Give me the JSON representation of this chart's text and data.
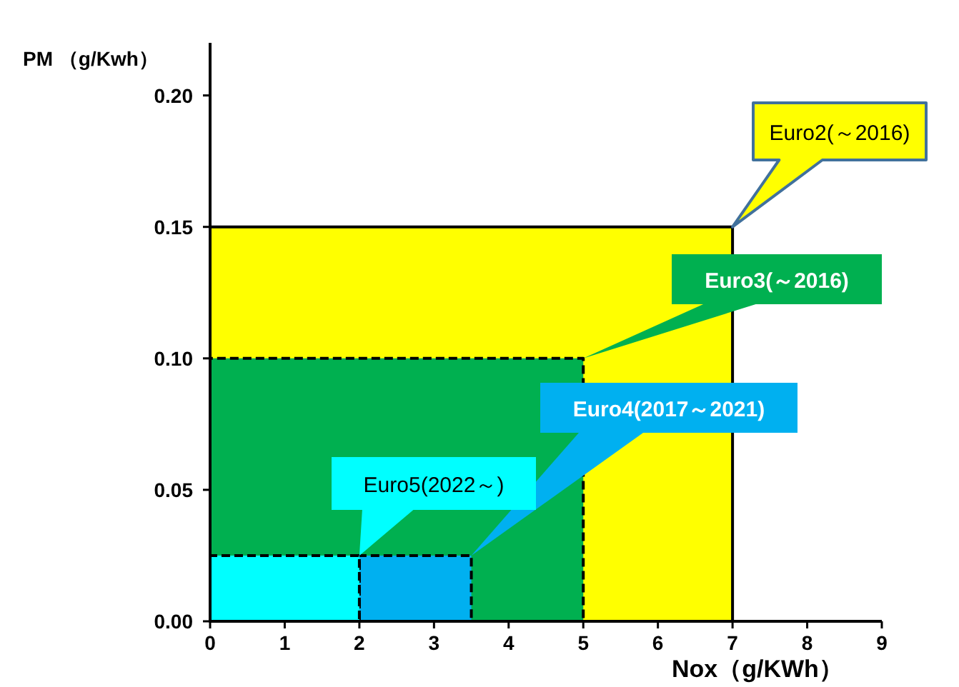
{
  "chart_data": {
    "type": "area",
    "xlabel": "Nox（g/KWh）",
    "ylabel": "PM （g/Kwh）",
    "xlim": [
      0,
      9
    ],
    "xticks": [
      0,
      1,
      2,
      3,
      4,
      5,
      6,
      7,
      8,
      9
    ],
    "ylim": [
      0,
      0.22
    ],
    "yticks": [
      {
        "value": 0,
        "label": "0.00"
      },
      {
        "value": 0.05,
        "label": "0.05"
      },
      {
        "value": 0.1,
        "label": "0.10"
      },
      {
        "value": 0.15,
        "label": "0.15"
      },
      {
        "value": 0.2,
        "label": "0.20"
      }
    ],
    "series": [
      {
        "name": "Euro2(～2016)",
        "color": "#ffff00",
        "x": [
          0,
          7
        ],
        "values": [
          0.15,
          0.15
        ],
        "line_style": "solid"
      },
      {
        "name": "Euro3(～2016)",
        "color": "#00b050",
        "x": [
          0,
          5
        ],
        "values": [
          0.1,
          0.1
        ],
        "line_style": "dashed"
      },
      {
        "name": "Euro4(2017～2021)",
        "color": "#00b0f0",
        "x": [
          2,
          3.5
        ],
        "values": [
          0.025,
          0.025
        ],
        "line_style": "dashed"
      },
      {
        "name": "Euro5(2022～)",
        "color": "#00ffff",
        "x": [
          0,
          2
        ],
        "values": [
          0.025,
          0.025
        ],
        "line_style": "dashed"
      }
    ]
  }
}
